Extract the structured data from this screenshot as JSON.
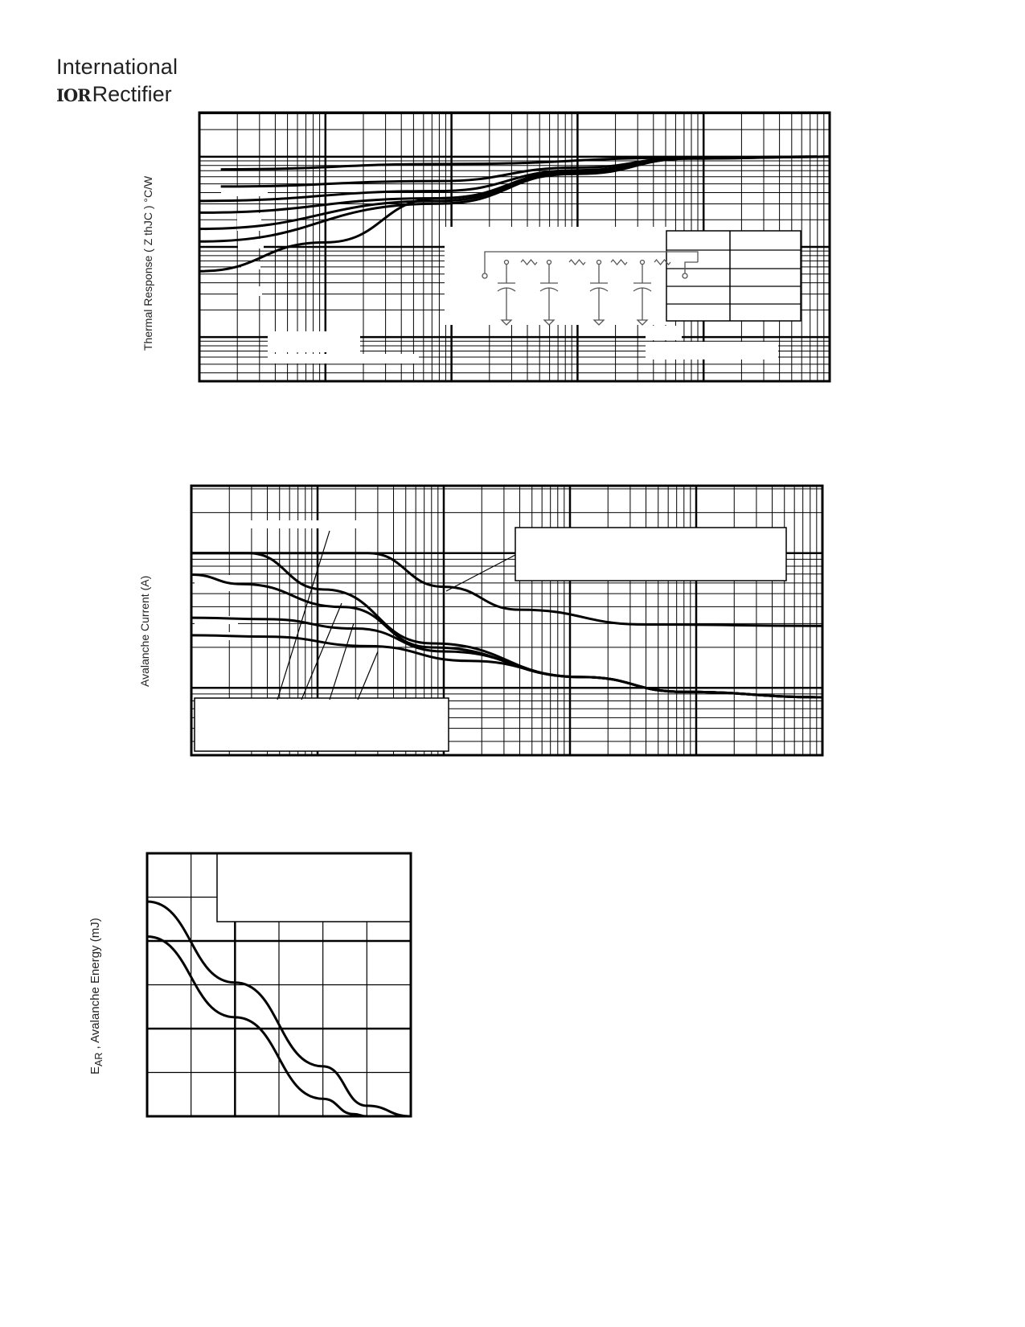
{
  "header": {
    "logo_line1": "International",
    "logo_mark": "IOR",
    "logo_line2": "Rectifier"
  },
  "chart_data": [
    {
      "type": "line",
      "x_scale": "log",
      "y_scale": "log",
      "grid": true,
      "ylabel": "Thermal Response ( Z  thJC ) °C/W",
      "xlabel": "",
      "units_note": "x,y in log decades",
      "xlim": [
        0,
        5
      ],
      "ylim": [
        -1.49,
        1.49
      ],
      "series": [
        {
          "points": [
            [
              0.17,
              0.86
            ],
            [
              2,
              0.92
            ],
            [
              3.9,
              0.99
            ],
            [
              5,
              1.0
            ]
          ]
        },
        {
          "points": [
            [
              0.17,
              0.67
            ],
            [
              1.9,
              0.73
            ],
            [
              3,
              0.88
            ],
            [
              3.9,
              0.99
            ],
            [
              5,
              1.0
            ]
          ]
        },
        {
          "points": [
            [
              0,
              0.51
            ],
            [
              1.9,
              0.62
            ],
            [
              3,
              0.85
            ],
            [
              3.9,
              0.99
            ],
            [
              5,
              1.0
            ]
          ]
        },
        {
          "points": [
            [
              0,
              0.38
            ],
            [
              1.9,
              0.54
            ],
            [
              3,
              0.84
            ],
            [
              3.9,
              0.99
            ],
            [
              5,
              1.0
            ]
          ]
        },
        {
          "points": [
            [
              0,
              0.2
            ],
            [
              1.9,
              0.51
            ],
            [
              3,
              0.83
            ],
            [
              3.9,
              0.99
            ],
            [
              5,
              1.0
            ]
          ]
        },
        {
          "points": [
            [
              0,
              0.06
            ],
            [
              1.9,
              0.48
            ],
            [
              3,
              0.82
            ],
            [
              3.9,
              0.98
            ],
            [
              5,
              1.0
            ]
          ]
        },
        {
          "points": [
            [
              0,
              -0.27
            ],
            [
              1,
              0.05
            ],
            [
              1.9,
              0.54
            ],
            [
              3,
              0.81
            ],
            [
              3.9,
              0.98
            ],
            [
              5,
              1.0
            ]
          ]
        }
      ],
      "circuit_icon": "rc-ladder-network"
    },
    {
      "type": "line",
      "x_scale": "log",
      "y_scale": "log",
      "grid": true,
      "ylabel": "Avalanche Current (A)",
      "xlabel": "",
      "units_note": "x,y in log decades",
      "xlim": [
        0,
        5
      ],
      "ylim": [
        -0.5,
        1.5
      ],
      "series": [
        {
          "points": [
            [
              0,
              1
            ],
            [
              0.5,
              1
            ],
            [
              1.4,
              1
            ],
            [
              2,
              0.75
            ],
            [
              2.6,
              0.58
            ],
            [
              3.6,
              0.47
            ],
            [
              5,
              0.46
            ]
          ]
        },
        {
          "points": [
            [
              0,
              1
            ],
            [
              0.45,
              1
            ],
            [
              1.05,
              0.73
            ],
            [
              1.9,
              0.33
            ],
            [
              3.1,
              0.08
            ],
            [
              3.9,
              -0.03
            ],
            [
              5,
              -0.07
            ]
          ]
        },
        {
          "points": [
            [
              0,
              0.84
            ],
            [
              0.4,
              0.77
            ],
            [
              1.2,
              0.6
            ],
            [
              1.9,
              0.3
            ],
            [
              3.1,
              0.08
            ],
            [
              3.9,
              -0.03
            ],
            [
              5,
              -0.07
            ]
          ]
        },
        {
          "points": [
            [
              0,
              0.52
            ],
            [
              0.6,
              0.51
            ],
            [
              1.3,
              0.44
            ],
            [
              2,
              0.27
            ],
            [
              3.1,
              0.08
            ],
            [
              3.9,
              -0.03
            ],
            [
              5,
              -0.07
            ]
          ]
        },
        {
          "points": [
            [
              0,
              0.39
            ],
            [
              0.6,
              0.38
            ],
            [
              1.4,
              0.31
            ],
            [
              2.2,
              0.2
            ],
            [
              3.1,
              0.08
            ],
            [
              3.9,
              -0.03
            ],
            [
              5,
              -0.07
            ]
          ]
        }
      ]
    },
    {
      "type": "line",
      "x_scale": "linear",
      "y_scale": "linear",
      "grid": true,
      "ylabel": "E AR , Avalanche Energy (mJ)",
      "ylabel_main": "E",
      "ylabel_sub": "AR",
      "ylabel_rest": ", Avalanche Energy (mJ)",
      "xlabel": "",
      "units_note": "x,y in grid divisions",
      "xlim": [
        0,
        6
      ],
      "ylim": [
        0,
        6
      ],
      "series": [
        {
          "points": [
            [
              0,
              4.9
            ],
            [
              2,
              3.05
            ],
            [
              4,
              1.14
            ],
            [
              5,
              0.24
            ],
            [
              6,
              0
            ]
          ]
        },
        {
          "points": [
            [
              0,
              4.1
            ],
            [
              2,
              2.26
            ],
            [
              4,
              0.4
            ],
            [
              4.7,
              0.05
            ],
            [
              5,
              0
            ]
          ]
        }
      ]
    }
  ]
}
